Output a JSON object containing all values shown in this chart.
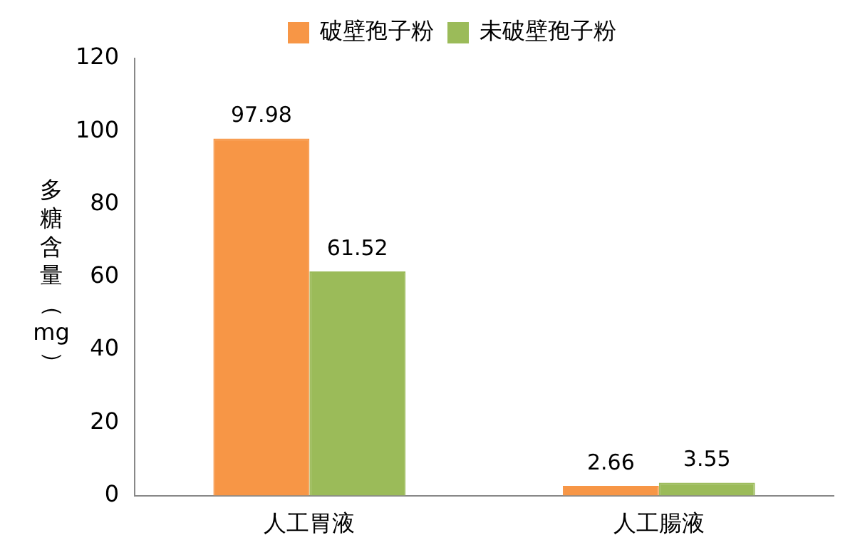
{
  "chart_data": {
    "type": "bar",
    "categories": [
      "人工胃液",
      "人工腸液"
    ],
    "series": [
      {
        "name": "破壁孢子粉",
        "color": "#f79646",
        "values": [
          97.98,
          2.66
        ]
      },
      {
        "name": "未破壁孢子粉",
        "color": "#9bbb59",
        "values": [
          61.52,
          3.55
        ]
      }
    ],
    "ylabel": "多糖含量（mg）",
    "ylim": [
      0,
      120
    ],
    "yticks": [
      0,
      20,
      40,
      60,
      80,
      100,
      120
    ],
    "grid": false,
    "legend": "top",
    "data_labels": true
  }
}
